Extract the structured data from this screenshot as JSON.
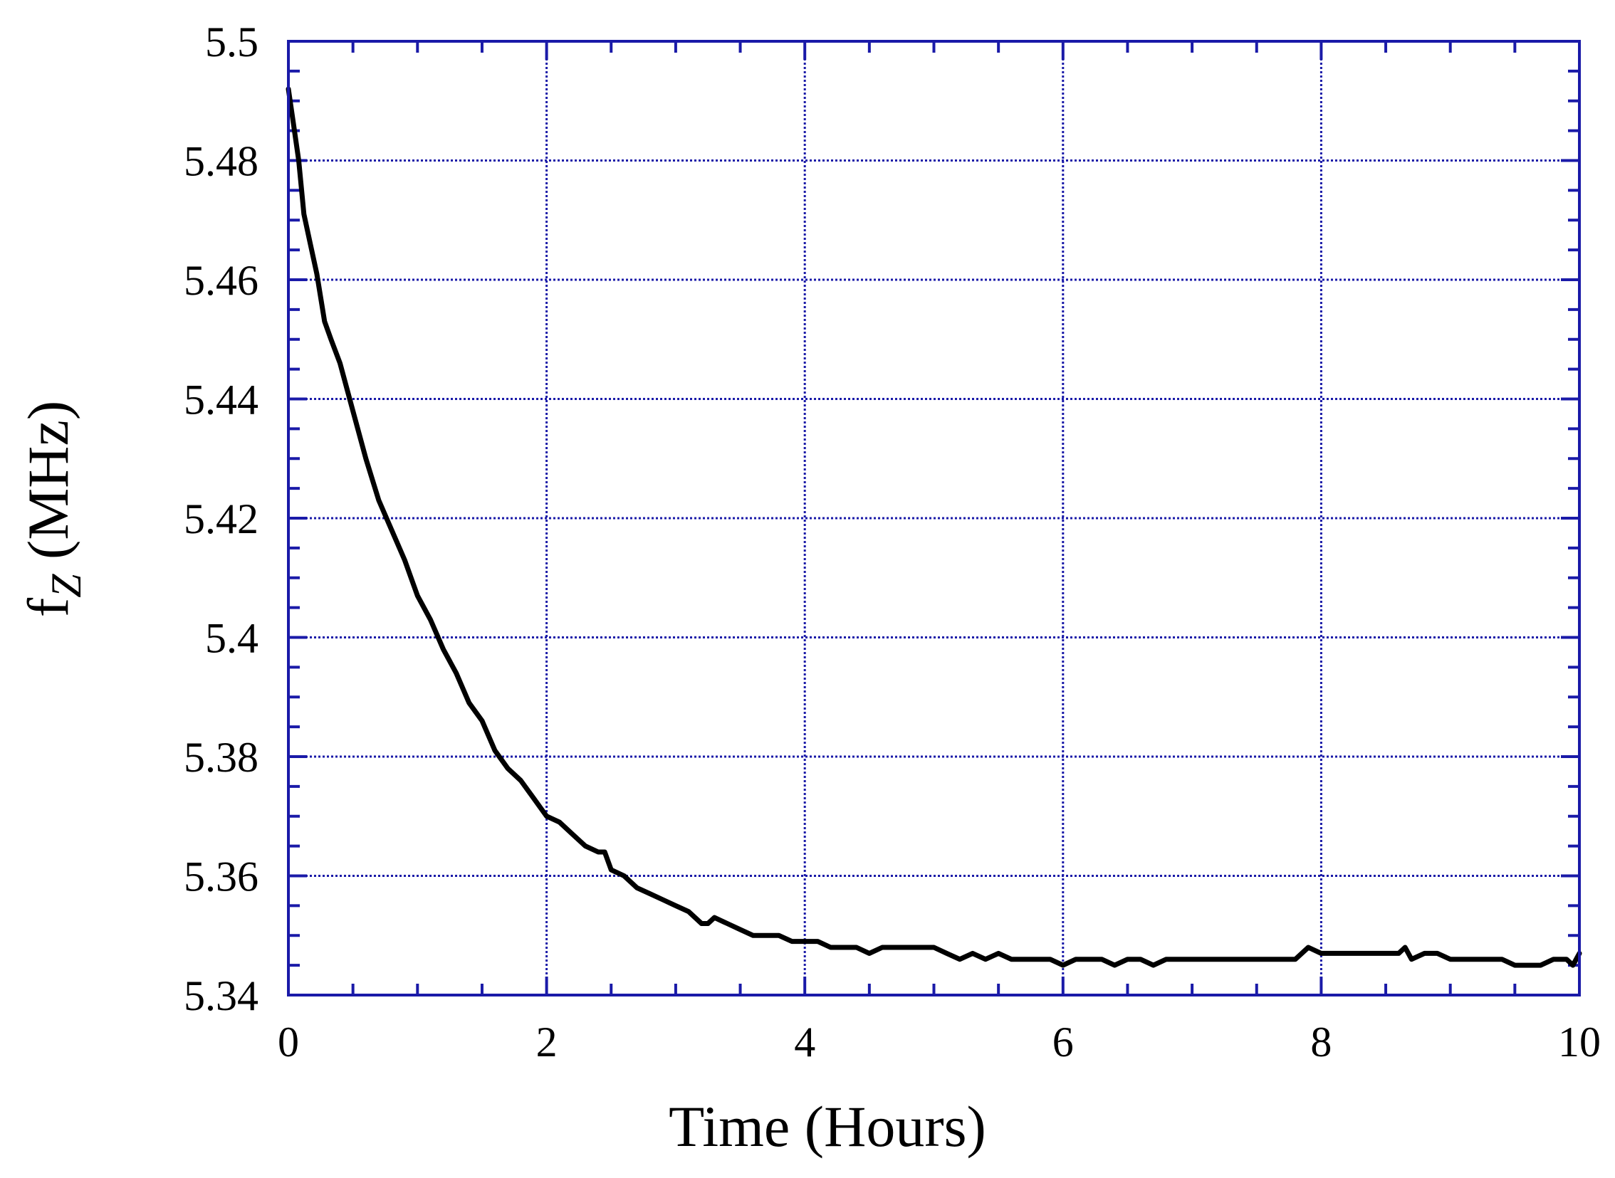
{
  "colors": {
    "frame": "#1a1aa8",
    "grid": "#1a1aa8",
    "line": "#000000",
    "background": "#ffffff"
  },
  "chart_data": {
    "type": "line",
    "title": "",
    "xlabel": "Time (Hours)",
    "ylabel": {
      "main": "f",
      "sub": "Z",
      "unit": " (MHz)"
    },
    "xlim": [
      0,
      10
    ],
    "ylim": [
      5.34,
      5.5
    ],
    "xticks": [
      0,
      2,
      4,
      6,
      8,
      10
    ],
    "xtick_labels": [
      "0",
      "2",
      "4",
      "6",
      "8",
      "10"
    ],
    "yticks": [
      5.34,
      5.36,
      5.38,
      5.4,
      5.42,
      5.44,
      5.46,
      5.48,
      5.5
    ],
    "ytick_labels": [
      "5.34",
      "5.36",
      "5.38",
      "5.4",
      "5.42",
      "5.44",
      "5.46",
      "5.48",
      "5.5"
    ],
    "x_minor_step": 0.5,
    "y_minor_step": 0.005,
    "grid": true,
    "series": [
      {
        "x": [
          0,
          0.04,
          0.08,
          0.12,
          0.17,
          0.22,
          0.28,
          0.33,
          0.4,
          0.5,
          0.6,
          0.7,
          0.8,
          0.9,
          1.0,
          1.1,
          1.2,
          1.3,
          1.4,
          1.5,
          1.6,
          1.7,
          1.8,
          1.9,
          2.0,
          2.1,
          2.2,
          2.3,
          2.4,
          2.45,
          2.5,
          2.6,
          2.7,
          2.8,
          2.9,
          3.0,
          3.1,
          3.2,
          3.25,
          3.3,
          3.4,
          3.5,
          3.6,
          3.7,
          3.8,
          3.9,
          4.0,
          4.1,
          4.2,
          4.3,
          4.4,
          4.5,
          4.6,
          4.7,
          4.8,
          4.9,
          5.0,
          5.1,
          5.2,
          5.3,
          5.4,
          5.5,
          5.6,
          5.7,
          5.8,
          5.9,
          6.0,
          6.1,
          6.2,
          6.3,
          6.4,
          6.5,
          6.6,
          6.7,
          6.8,
          6.9,
          7.0,
          7.1,
          7.2,
          7.3,
          7.4,
          7.5,
          7.6,
          7.7,
          7.8,
          7.9,
          8.0,
          8.1,
          8.2,
          8.3,
          8.4,
          8.5,
          8.6,
          8.65,
          8.7,
          8.8,
          8.9,
          9.0,
          9.1,
          9.2,
          9.3,
          9.4,
          9.5,
          9.6,
          9.7,
          9.8,
          9.9,
          9.95,
          10.0
        ],
        "y": [
          5.492,
          5.486,
          5.48,
          5.471,
          5.466,
          5.461,
          5.453,
          5.45,
          5.446,
          5.438,
          5.43,
          5.423,
          5.418,
          5.413,
          5.407,
          5.403,
          5.398,
          5.394,
          5.389,
          5.386,
          5.381,
          5.378,
          5.376,
          5.373,
          5.37,
          5.369,
          5.367,
          5.365,
          5.364,
          5.364,
          5.361,
          5.36,
          5.358,
          5.357,
          5.356,
          5.355,
          5.354,
          5.352,
          5.352,
          5.353,
          5.352,
          5.351,
          5.35,
          5.35,
          5.35,
          5.349,
          5.349,
          5.349,
          5.348,
          5.348,
          5.348,
          5.347,
          5.348,
          5.348,
          5.348,
          5.348,
          5.348,
          5.347,
          5.346,
          5.347,
          5.346,
          5.347,
          5.346,
          5.346,
          5.346,
          5.346,
          5.345,
          5.346,
          5.346,
          5.346,
          5.345,
          5.346,
          5.346,
          5.345,
          5.346,
          5.346,
          5.346,
          5.346,
          5.346,
          5.346,
          5.346,
          5.346,
          5.346,
          5.346,
          5.346,
          5.348,
          5.347,
          5.347,
          5.347,
          5.347,
          5.347,
          5.347,
          5.347,
          5.348,
          5.346,
          5.347,
          5.347,
          5.346,
          5.346,
          5.346,
          5.346,
          5.346,
          5.345,
          5.345,
          5.345,
          5.346,
          5.346,
          5.345,
          5.347
        ]
      }
    ]
  }
}
